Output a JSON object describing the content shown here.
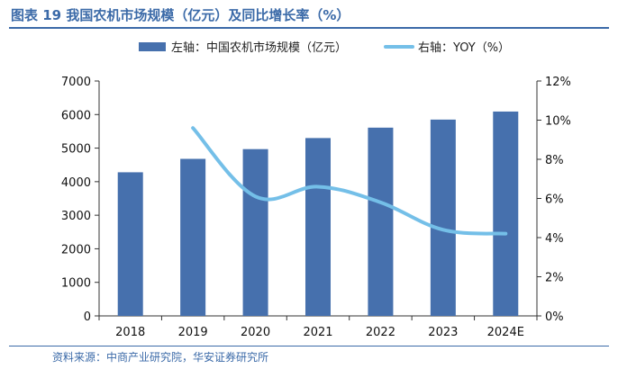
{
  "title": "图表 19 我国农机市场规模（亿元）及同比增长率（%）",
  "source": "资料来源：中商产业研究院，华安证券研究所",
  "colors": {
    "bar": "#4670ad",
    "line": "#74bfe8",
    "accent": "#3b6aa8",
    "axis": "#333333"
  },
  "chart_data": {
    "type": "bar",
    "categories": [
      "2018",
      "2019",
      "2020",
      "2021",
      "2022",
      "2023",
      "2024E"
    ],
    "series": [
      {
        "name": "左轴：中国农机市场规模（亿元）",
        "type": "bar",
        "axis": "left",
        "values": [
          4280,
          4680,
          4970,
          5300,
          5610,
          5850,
          6090
        ]
      },
      {
        "name": "右轴：YOY（%）",
        "type": "line",
        "axis": "right",
        "values": [
          null,
          9.6,
          6.1,
          6.6,
          5.8,
          4.4,
          4.2
        ]
      }
    ],
    "y_left": {
      "ticks": [
        "0",
        "1000",
        "2000",
        "3000",
        "4000",
        "5000",
        "6000",
        "7000"
      ],
      "lim": [
        0,
        7000
      ]
    },
    "y_right": {
      "ticks": [
        "0%",
        "2%",
        "4%",
        "6%",
        "8%",
        "10%",
        "12%"
      ],
      "lim": [
        0,
        12
      ]
    },
    "legend": "top",
    "grid": false
  }
}
